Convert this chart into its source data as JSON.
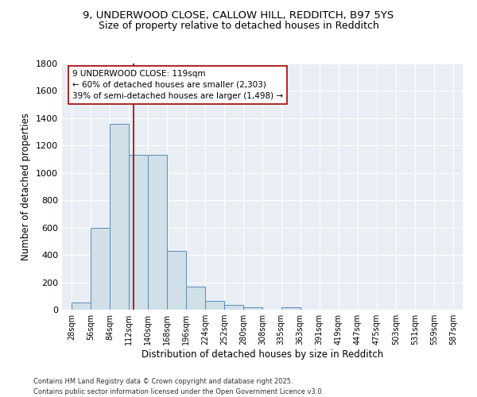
{
  "title_line1": "9, UNDERWOOD CLOSE, CALLOW HILL, REDDITCH, B97 5YS",
  "title_line2": "Size of property relative to detached houses in Redditch",
  "xlabel": "Distribution of detached houses by size in Redditch",
  "ylabel": "Number of detached properties",
  "bin_edges": [
    28,
    56,
    84,
    112,
    140,
    168,
    196,
    224,
    252,
    280,
    308,
    335,
    363,
    391,
    419,
    447,
    475,
    503,
    531,
    559,
    587
  ],
  "bar_heights": [
    55,
    600,
    1360,
    1130,
    1130,
    430,
    170,
    65,
    35,
    20,
    0,
    15,
    0,
    0,
    0,
    0,
    0,
    0,
    0,
    0
  ],
  "bar_color": "#d0dfe8",
  "bar_edge_color": "#5b8db8",
  "property_size": 119,
  "vline_color": "#990000",
  "annotation_text": "9 UNDERWOOD CLOSE: 119sqm\n← 60% of detached houses are smaller (2,303)\n39% of semi-detached houses are larger (1,498) →",
  "annotation_box_color": "#ffffff",
  "annotation_box_edge": "#aa0000",
  "ylim": [
    0,
    1800
  ],
  "yticks": [
    0,
    200,
    400,
    600,
    800,
    1000,
    1200,
    1400,
    1600,
    1800
  ],
  "bg_color": "#e8eef4",
  "footer_line1": "Contains HM Land Registry data © Crown copyright and database right 2025.",
  "footer_line2": "Contains public sector information licensed under the Open Government Licence v3.0.",
  "tick_labels": [
    "28sqm",
    "56sqm",
    "84sqm",
    "112sqm",
    "140sqm",
    "168sqm",
    "196sqm",
    "224sqm",
    "252sqm",
    "280sqm",
    "308sqm",
    "335sqm",
    "363sqm",
    "391sqm",
    "419sqm",
    "447sqm",
    "475sqm",
    "503sqm",
    "531sqm",
    "559sqm",
    "587sqm"
  ]
}
